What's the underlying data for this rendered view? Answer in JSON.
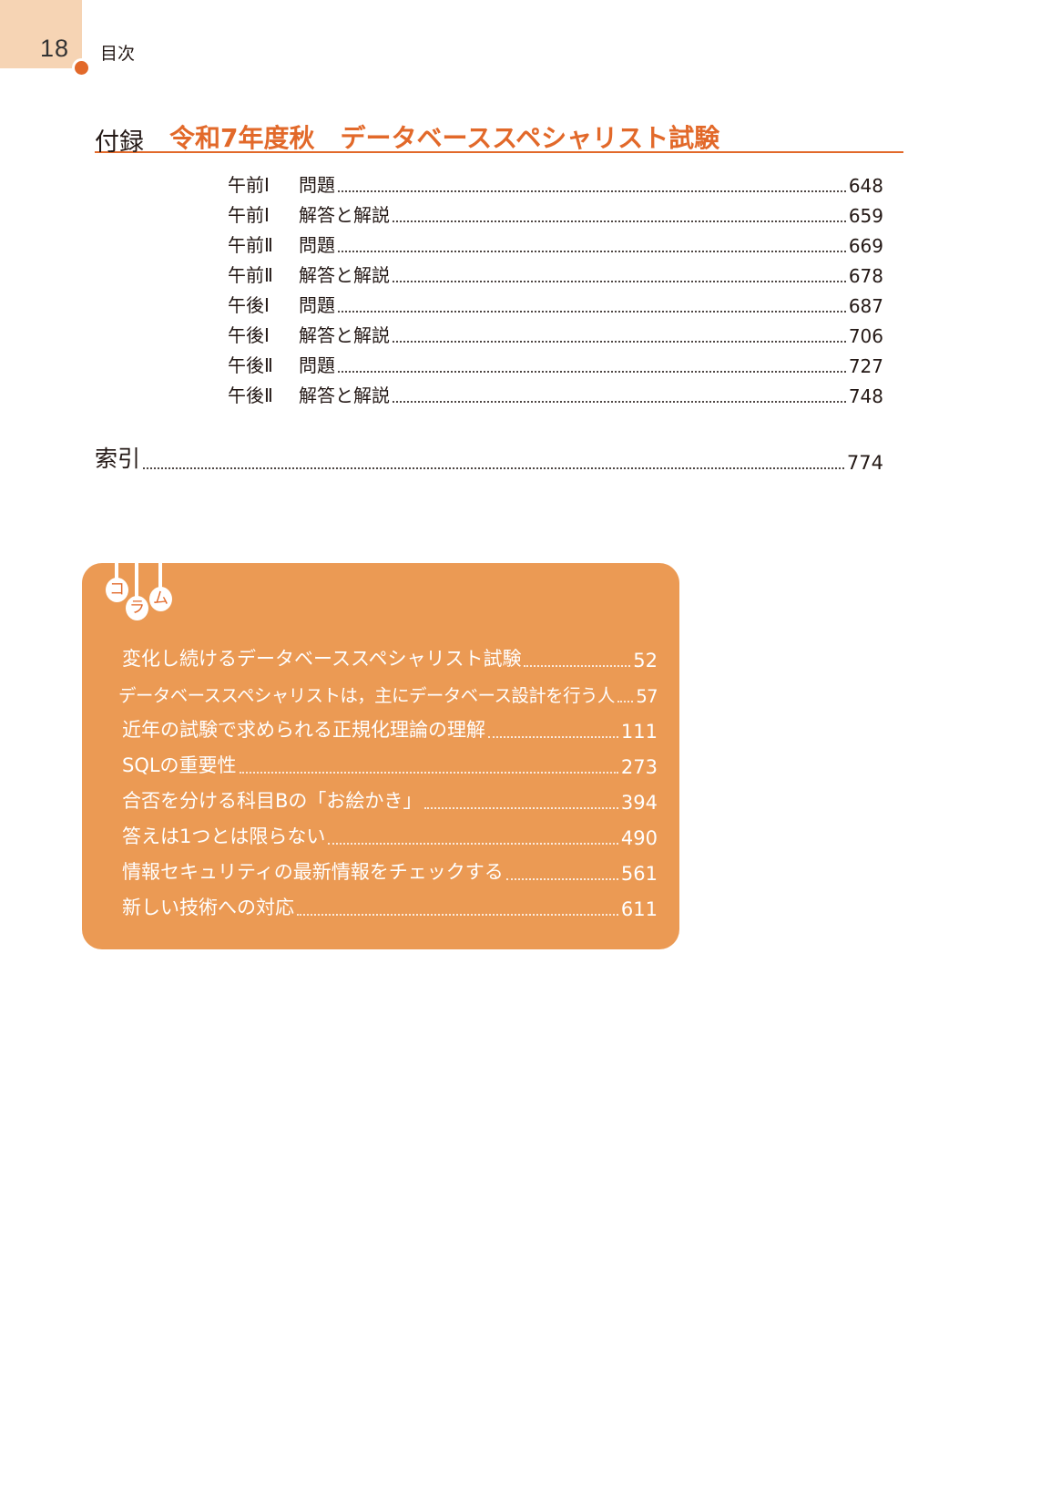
{
  "header": {
    "page_number": "18",
    "section": "目次"
  },
  "appendix": {
    "prefix": "付録",
    "title": "令和7年度秋　データベーススペシャリスト試験",
    "items": [
      {
        "part": "午前Ⅰ",
        "label": "問題",
        "page": "648"
      },
      {
        "part": "午前Ⅰ",
        "label": "解答と解説",
        "page": "659"
      },
      {
        "part": "午前Ⅱ",
        "label": "問題",
        "page": "669"
      },
      {
        "part": "午前Ⅱ",
        "label": "解答と解説",
        "page": "678"
      },
      {
        "part": "午後Ⅰ",
        "label": "問題",
        "page": "687"
      },
      {
        "part": "午後Ⅰ",
        "label": "解答と解説",
        "page": "706"
      },
      {
        "part": "午後Ⅱ",
        "label": "問題",
        "page": "727"
      },
      {
        "part": "午後Ⅱ",
        "label": "解答と解説",
        "page": "748"
      }
    ]
  },
  "index": {
    "label": "索引",
    "page": "774"
  },
  "column": {
    "badge": [
      "コ",
      "ラ",
      "ム"
    ],
    "items": [
      {
        "title": "変化し続けるデータベーススペシャリスト試験",
        "page": "52"
      },
      {
        "title": "データベーススペシャリストは，主にデータベース設計を行う人",
        "page": "57"
      },
      {
        "title": "近年の試験で求められる正規化理論の理解",
        "page": "111"
      },
      {
        "title": "SQLの重要性",
        "page": "273"
      },
      {
        "title": "合否を分ける科目Bの「お絵かき」",
        "page": "394"
      },
      {
        "title": "答えは1つとは限らない",
        "page": "490"
      },
      {
        "title": "情報セキュリティの最新情報をチェックする",
        "page": "561"
      },
      {
        "title": "新しい技術への対応",
        "page": "611"
      }
    ]
  },
  "colors": {
    "accent": "#e2692a",
    "tab": "#f6d4b4",
    "column_bg": "#eb9a54"
  }
}
